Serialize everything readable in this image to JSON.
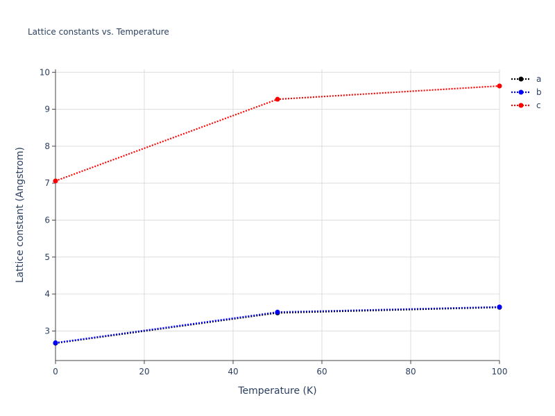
{
  "chart_data": {
    "type": "line",
    "title": "Lattice constants vs. Temperature",
    "x_label": "Temperature (K)",
    "y_label": "Lattice constant (Angstrom)",
    "x": [
      0,
      50,
      100
    ],
    "series": [
      {
        "name": "a",
        "color": "#000000",
        "values": [
          2.67,
          3.49,
          3.64
        ]
      },
      {
        "name": "b",
        "color": "#0000ff",
        "values": [
          2.68,
          3.51,
          3.65
        ]
      },
      {
        "name": "c",
        "color": "#ff0000",
        "values": [
          7.06,
          9.27,
          9.63
        ]
      }
    ],
    "xlim": [
      0,
      100
    ],
    "xticks": [
      0,
      20,
      40,
      60,
      80,
      100
    ],
    "ylim": [
      2.2,
      10.08
    ],
    "yticks": [
      3,
      4,
      5,
      6,
      7,
      8,
      9,
      10
    ],
    "grid": true,
    "legend": "top-right"
  }
}
